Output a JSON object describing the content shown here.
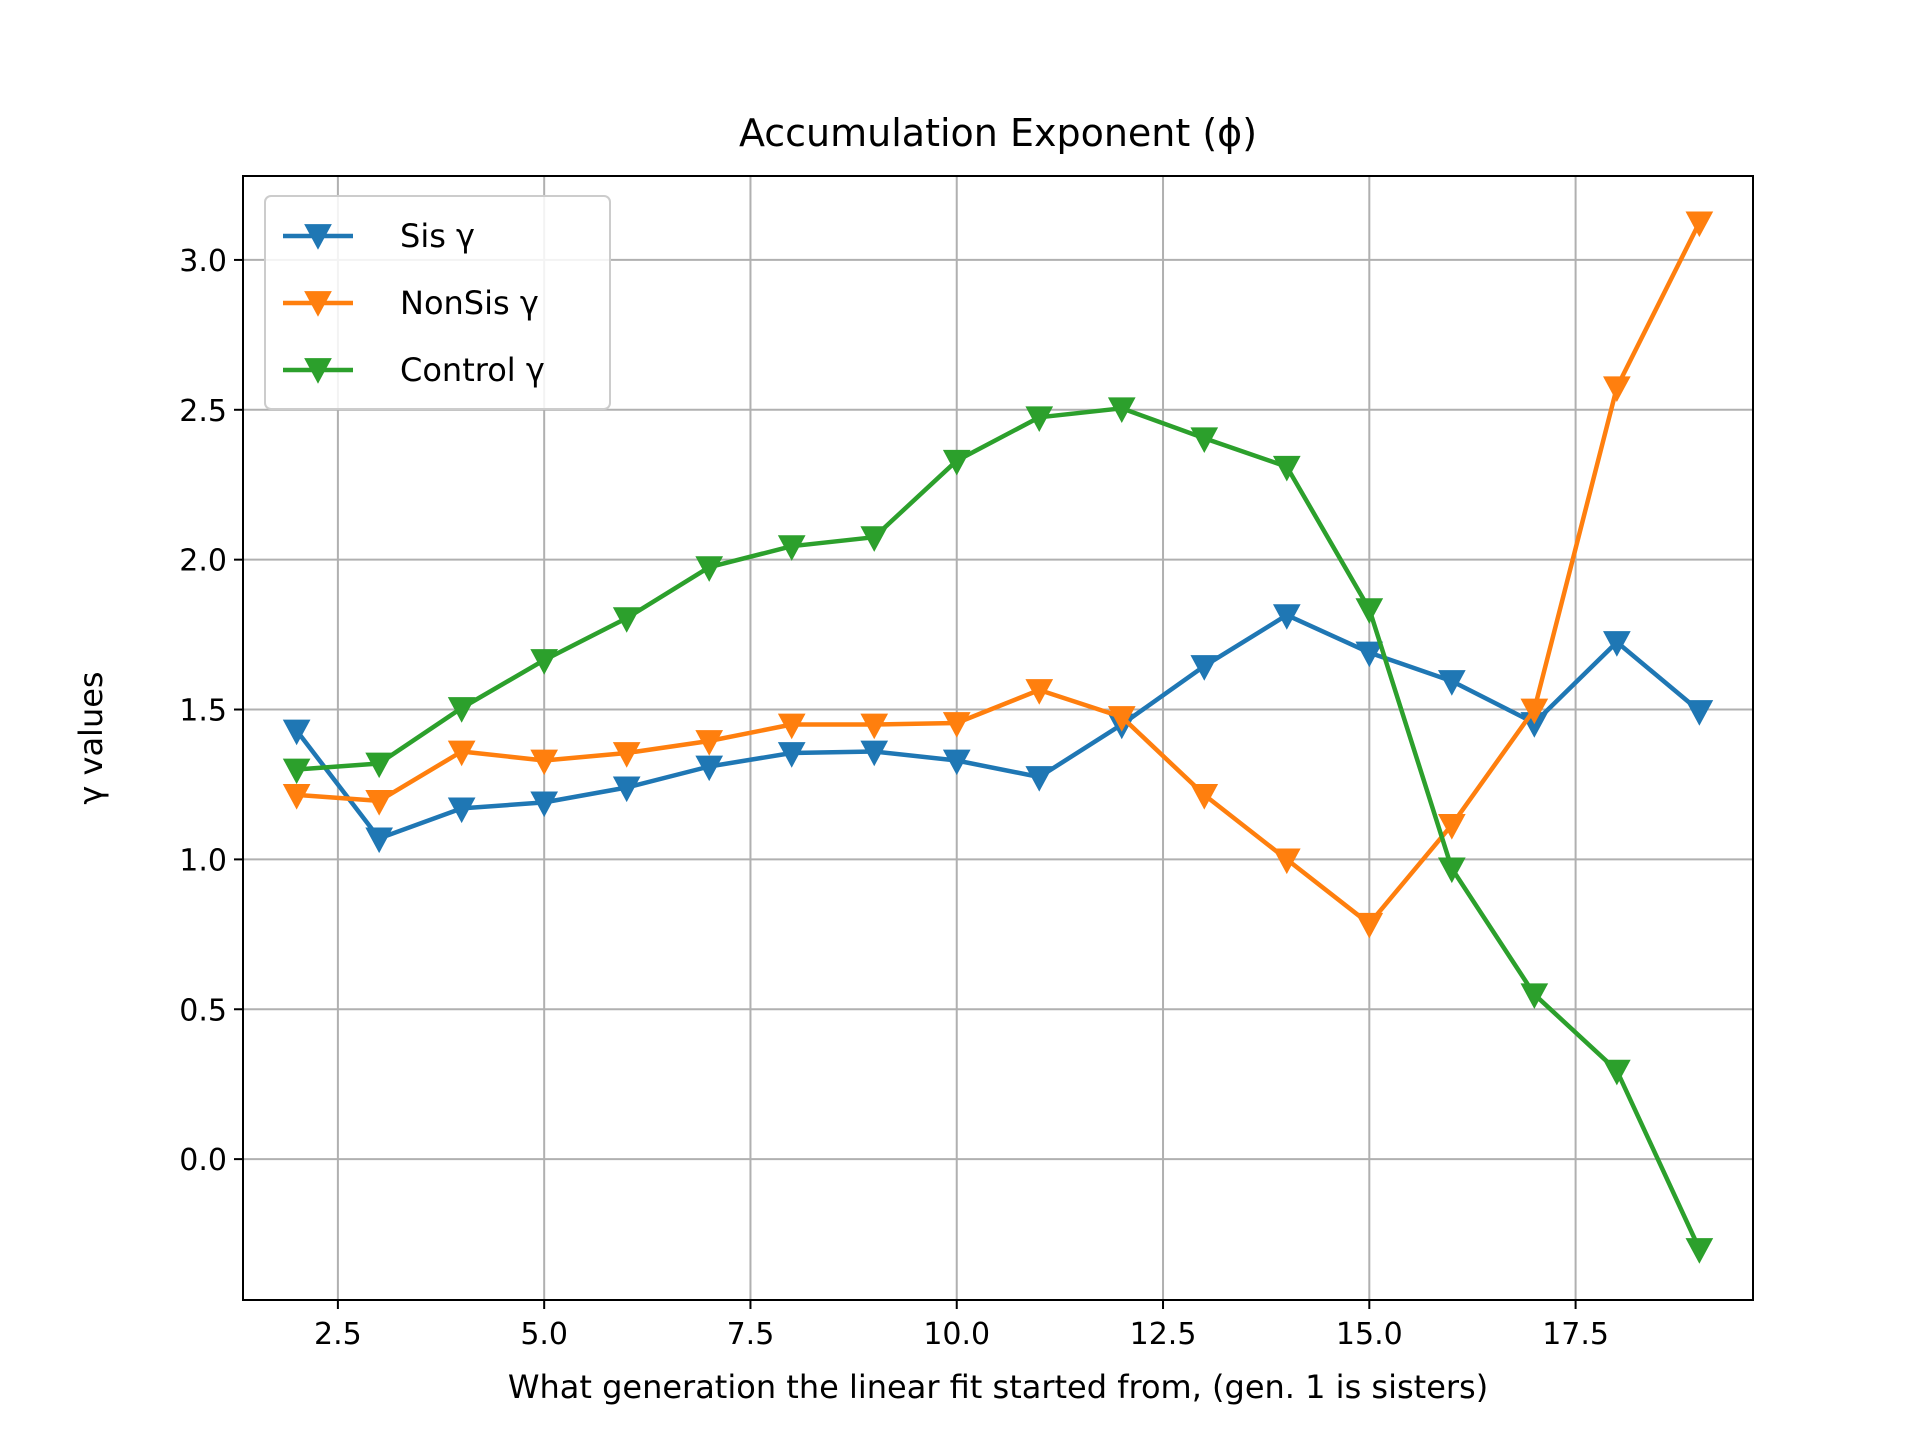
{
  "chart_data": {
    "type": "line",
    "title": "Accumulation Exponent (ϕ)",
    "xlabel": "What generation the linear fit started from, (gen. 1 is sisters)",
    "ylabel": "γ values",
    "xlim": [
      1.35,
      19.65
    ],
    "ylim": [
      -0.47,
      3.28
    ],
    "x_ticks": [
      2.5,
      5.0,
      7.5,
      10.0,
      12.5,
      15.0,
      17.5
    ],
    "x_tick_labels": [
      "2.5",
      "5.0",
      "7.5",
      "10.0",
      "12.5",
      "15.0",
      "17.5"
    ],
    "y_ticks": [
      0.0,
      0.5,
      1.0,
      1.5,
      2.0,
      2.5,
      3.0
    ],
    "y_tick_labels": [
      "0.0",
      "0.5",
      "1.0",
      "1.5",
      "2.0",
      "2.5",
      "3.0"
    ],
    "grid": true,
    "legend_position": "top-left",
    "marker": "triangle-down",
    "x": [
      2,
      3,
      4,
      5,
      6,
      7,
      8,
      9,
      10,
      11,
      12,
      13,
      14,
      15,
      16,
      17,
      18,
      19
    ],
    "series": [
      {
        "name": "Sis γ",
        "color": "#1f77b4",
        "values": [
          1.43,
          1.07,
          1.17,
          1.19,
          1.24,
          1.31,
          1.355,
          1.36,
          1.33,
          1.275,
          1.45,
          1.645,
          1.815,
          1.69,
          1.595,
          1.455,
          1.725,
          1.495
        ]
      },
      {
        "name": "NonSis γ",
        "color": "#ff7f0e",
        "values": [
          1.215,
          1.195,
          1.36,
          1.33,
          1.355,
          1.395,
          1.45,
          1.45,
          1.455,
          1.565,
          1.475,
          1.215,
          1.0,
          0.785,
          1.115,
          1.5,
          2.575,
          3.125
        ]
      },
      {
        "name": "Control γ",
        "color": "#2ca02c",
        "values": [
          1.3,
          1.32,
          1.505,
          1.665,
          1.805,
          1.975,
          2.045,
          2.075,
          2.33,
          2.475,
          2.505,
          2.405,
          2.31,
          1.835,
          0.97,
          0.55,
          0.295,
          -0.3
        ]
      }
    ]
  }
}
